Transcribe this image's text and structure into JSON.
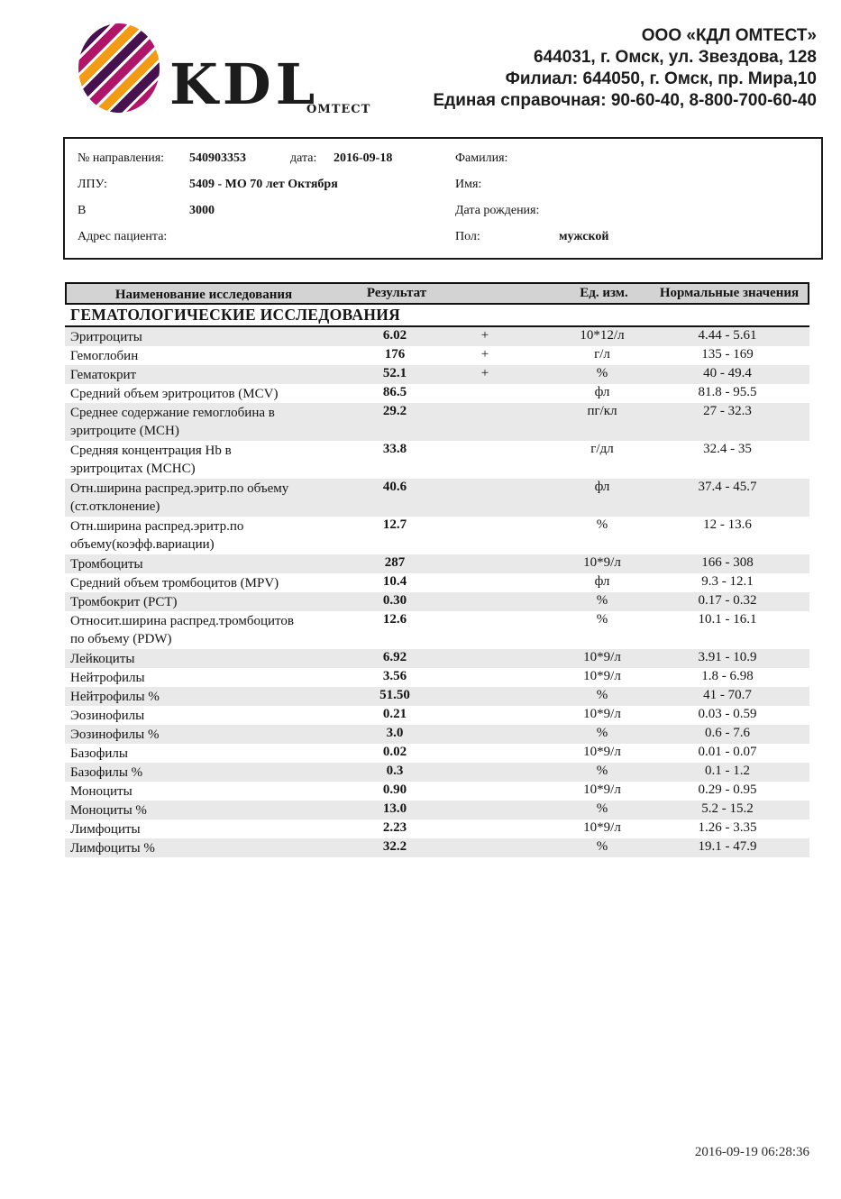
{
  "colors": {
    "stripe": "#e9e9e9",
    "table_header_bg": "#d3d3d3",
    "logo_orange": "#f49b15",
    "logo_purple": "#47104f",
    "logo_magenta": "#b0156a"
  },
  "header": {
    "logo": {
      "kdl": "KDL",
      "omtest": "ОМТЕСТ"
    },
    "company": {
      "lines": [
        "ООО «КДЛ ОМТЕСТ»",
        "644031,  г. Омск, ул. Звездова, 128",
        "Филиал: 644050,  г. Омск, пр. Мира,10",
        "Единая справочная: 90-60-40, 8-800-700-60-40"
      ]
    }
  },
  "patient": {
    "ref_label": "№ направления:",
    "ref_value": "540903353",
    "date_label": "дата:",
    "date_value": "2016-09-18",
    "lpu_label": "ЛПУ:",
    "lpu_value": "5409 - МО 70 лет Октября",
    "b_label": "В",
    "b_value": "3000",
    "address_label": "Адрес пациента:",
    "surname_label": "Фамилия:",
    "firstname_label": "Имя:",
    "birthdate_label": "Дата рождения:",
    "sex_label": "Пол:",
    "sex_value": "мужской"
  },
  "table": {
    "headers": {
      "name": "Наименование исследования",
      "result": "Результат",
      "units": "Ед. изм.",
      "range": "Нормальные значения"
    },
    "section_title": "ГЕМАТОЛОГИЧЕСКИЕ ИССЛЕДОВАНИЯ",
    "rows": [
      {
        "name": "Эритроциты",
        "result": "6.02",
        "flag": "+",
        "unit": "10*12/л",
        "range": "4.44 - 5.61",
        "lines": 1
      },
      {
        "name": "Гемоглобин",
        "result": "176",
        "flag": "+",
        "unit": "г/л",
        "range": "135 - 169",
        "lines": 1
      },
      {
        "name": "Гематокрит",
        "result": "52.1",
        "flag": "+",
        "unit": "%",
        "range": "40 - 49.4",
        "lines": 1
      },
      {
        "name": "Средний объем эритроцитов (MCV)",
        "result": "86.5",
        "flag": "",
        "unit": "фл",
        "range": "81.8 - 95.5",
        "lines": 1
      },
      {
        "name": "Среднее содержание гемоглобина в\nэритроците (MCH)",
        "result": "29.2",
        "flag": "",
        "unit": "пг/кл",
        "range": "27 - 32.3",
        "lines": 2
      },
      {
        "name": "Средняя концентрация Hb в\nэритроцитах (MCHC)",
        "result": "33.8",
        "flag": "",
        "unit": "г/дл",
        "range": "32.4 - 35",
        "lines": 2
      },
      {
        "name": "Отн.ширина распред.эритр.по объему\n(ст.отклонение)",
        "result": "40.6",
        "flag": "",
        "unit": "фл",
        "range": "37.4 - 45.7",
        "lines": 2
      },
      {
        "name": "Отн.ширина распред.эритр.по\nобъему(коэфф.вариации)",
        "result": "12.7",
        "flag": "",
        "unit": "%",
        "range": "12 - 13.6",
        "lines": 2
      },
      {
        "name": "Тромбоциты",
        "result": "287",
        "flag": "",
        "unit": "10*9/л",
        "range": "166 - 308",
        "lines": 1
      },
      {
        "name": "Средний объем тромбоцитов (MPV)",
        "result": "10.4",
        "flag": "",
        "unit": "фл",
        "range": "9.3 - 12.1",
        "lines": 1
      },
      {
        "name": "Тромбокрит (PCT)",
        "result": "0.30",
        "flag": "",
        "unit": "%",
        "range": "0.17 - 0.32",
        "lines": 1
      },
      {
        "name": "Относит.ширина распред.тромбоцитов\nпо объему (PDW)",
        "result": "12.6",
        "flag": "",
        "unit": "%",
        "range": "10.1 - 16.1",
        "lines": 2
      },
      {
        "name": "Лейкоциты",
        "result": "6.92",
        "flag": "",
        "unit": "10*9/л",
        "range": "3.91 - 10.9",
        "lines": 1
      },
      {
        "name": "Нейтрофилы",
        "result": "3.56",
        "flag": "",
        "unit": "10*9/л",
        "range": "1.8 - 6.98",
        "lines": 1
      },
      {
        "name": "Нейтрофилы %",
        "result": "51.50",
        "flag": "",
        "unit": "%",
        "range": "41 - 70.7",
        "lines": 1
      },
      {
        "name": "Эозинофилы",
        "result": "0.21",
        "flag": "",
        "unit": "10*9/л",
        "range": "0.03 - 0.59",
        "lines": 1
      },
      {
        "name": "Эозинофилы %",
        "result": "3.0",
        "flag": "",
        "unit": "%",
        "range": "0.6 - 7.6",
        "lines": 1
      },
      {
        "name": "Базофилы",
        "result": "0.02",
        "flag": "",
        "unit": "10*9/л",
        "range": "0.01 - 0.07",
        "lines": 1
      },
      {
        "name": "Базофилы %",
        "result": "0.3",
        "flag": "",
        "unit": "%",
        "range": "0.1 - 1.2",
        "lines": 1
      },
      {
        "name": "Моноциты",
        "result": "0.90",
        "flag": "",
        "unit": "10*9/л",
        "range": "0.29 - 0.95",
        "lines": 1
      },
      {
        "name": "Моноциты %",
        "result": "13.0",
        "flag": "",
        "unit": "%",
        "range": "5.2 - 15.2",
        "lines": 1
      },
      {
        "name": "Лимфоциты",
        "result": "2.23",
        "flag": "",
        "unit": "10*9/л",
        "range": "1.26 - 3.35",
        "lines": 1
      },
      {
        "name": "Лимфоциты %",
        "result": "32.2",
        "flag": "",
        "unit": "%",
        "range": "19.1 - 47.9",
        "lines": 1
      }
    ]
  },
  "footer": {
    "generated": "2016-09-19 06:28:36"
  }
}
